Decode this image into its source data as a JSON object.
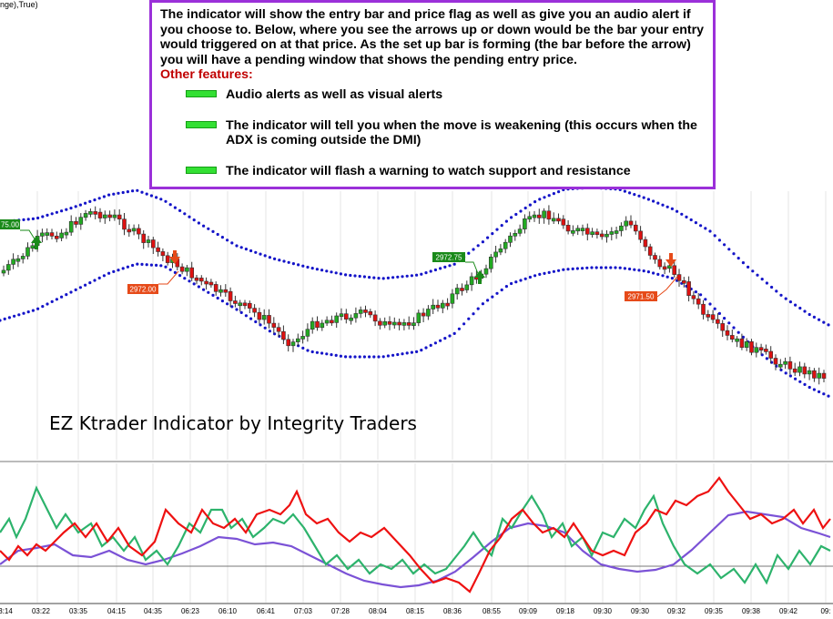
{
  "panel_title": "nge),True)",
  "callout": {
    "text": "The indicator will show the entry bar and price flag as well as give you an audio alert if you choose to. Below, where you see the arrows up or down would be the bar your entry would triggered on at that price.  As the set up bar is forming (the bar before the arrow) you will have a pending window that shows the pending entry price.",
    "features_heading": "Other features:",
    "features": [
      "Audio alerts as well as visual alerts",
      "The indicator will tell you when the move is weakening (this occurs when the ADX is coming outside the DMI)",
      "The indicator will flash a warning to watch support and resistance"
    ]
  },
  "brand_text": "EZ Ktrader Indicator by Integrity Traders",
  "colors": {
    "up_candle": "#22aa22",
    "down_candle": "#dd1111",
    "band": "#1414c8",
    "dmi_plus": "#2db36c",
    "dmi_minus": "#ee1111",
    "adx": "#7b52d6",
    "adx_alt": "#f2d22e",
    "flag_up": "#1a8a1a",
    "flag_down": "#e64a19",
    "border": "#9b30d9"
  },
  "chart_data": {
    "type": "candlestick",
    "x_ticks": [
      "3:14",
      "03:22",
      "03:35",
      "04:15",
      "04:35",
      "06:23",
      "06:10",
      "06:41",
      "07:03",
      "07:28",
      "08:04",
      "08:15",
      "08:36",
      "08:55",
      "09:09",
      "09:18",
      "09:30",
      "09:30",
      "09:32",
      "09:35",
      "09:38",
      "09:42",
      "09:"
    ],
    "price_flags": [
      {
        "label": "75.00",
        "type": "entry-long"
      },
      {
        "label": "2972.00",
        "type": "entry-short"
      },
      {
        "label": "2972.75",
        "type": "entry-long"
      },
      {
        "label": "2971.50",
        "type": "entry-short"
      }
    ],
    "signals": [
      "up",
      "down",
      "up",
      "down"
    ],
    "bands": [
      "upper",
      "lower"
    ],
    "lower_panel": {
      "series": [
        "dmi_plus",
        "dmi_minus",
        "adx"
      ],
      "reference_line": true
    }
  }
}
